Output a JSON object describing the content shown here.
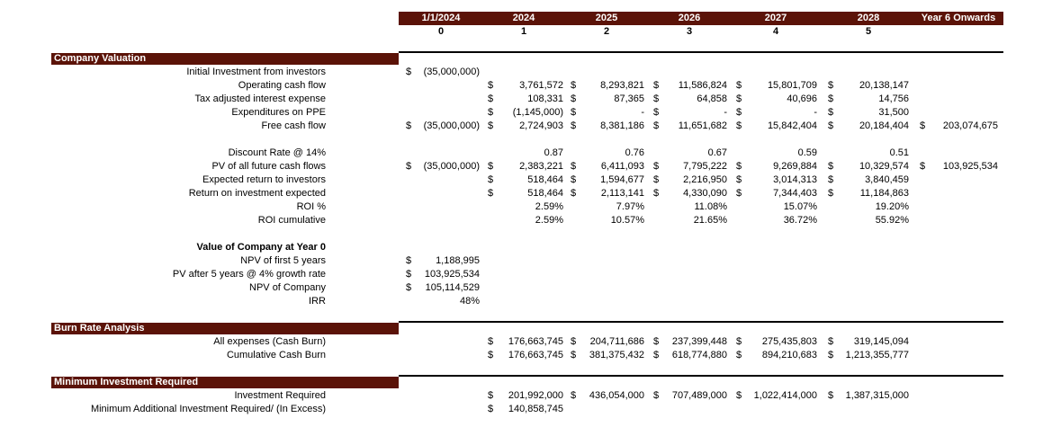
{
  "header": {
    "columns": [
      "1/1/2024",
      "2024",
      "2025",
      "2026",
      "2027",
      "2028",
      "Year 6 Onwards"
    ],
    "periods": [
      "0",
      "1",
      "2",
      "3",
      "4",
      "5"
    ]
  },
  "sections": [
    {
      "title": "Company Valuation",
      "rows": [
        {
          "label": "Initial Investment from investors",
          "cells": [
            [
              "$",
              "(35,000,000)"
            ],
            null,
            null,
            null,
            null,
            null,
            null
          ]
        },
        {
          "label": "Operating cash flow",
          "cells": [
            null,
            [
              "$",
              "3,761,572"
            ],
            [
              "$",
              "8,293,821"
            ],
            [
              "$",
              "11,586,824"
            ],
            [
              "$",
              "15,801,709"
            ],
            [
              "$",
              "20,138,147"
            ],
            null
          ]
        },
        {
          "label": "Tax adjusted interest expense",
          "cells": [
            null,
            [
              "$",
              "108,331"
            ],
            [
              "$",
              "87,365"
            ],
            [
              "$",
              "64,858"
            ],
            [
              "$",
              "40,696"
            ],
            [
              "$",
              "14,756"
            ],
            null
          ]
        },
        {
          "label": "Expenditures on PPE",
          "cells": [
            null,
            [
              "$",
              "(1,145,000)"
            ],
            [
              "$",
              "-"
            ],
            [
              "$",
              "-"
            ],
            [
              "$",
              "-"
            ],
            [
              "$",
              "31,500"
            ],
            null
          ]
        },
        {
          "label": "Free cash flow",
          "cells": [
            [
              "$",
              "(35,000,000)"
            ],
            [
              "$",
              "2,724,903"
            ],
            [
              "$",
              "8,381,186"
            ],
            [
              "$",
              "11,651,682"
            ],
            [
              "$",
              "15,842,404"
            ],
            [
              "$",
              "20,184,404"
            ],
            [
              "$",
              "203,074,675"
            ]
          ]
        },
        null,
        {
          "label": "Discount Rate @ 14%",
          "cells": [
            null,
            "0.87",
            "0.76",
            "0.67",
            "0.59",
            "0.51",
            null
          ]
        },
        {
          "label": "PV of all future cash flows",
          "cells": [
            [
              "$",
              "(35,000,000)"
            ],
            [
              "$",
              "2,383,221"
            ],
            [
              "$",
              "6,411,093"
            ],
            [
              "$",
              "7,795,222"
            ],
            [
              "$",
              "9,269,884"
            ],
            [
              "$",
              "10,329,574"
            ],
            [
              "$",
              "103,925,534"
            ]
          ]
        },
        {
          "label": "Expected return to investors",
          "cells": [
            null,
            [
              "$",
              "518,464"
            ],
            [
              "$",
              "1,594,677"
            ],
            [
              "$",
              "2,216,950"
            ],
            [
              "$",
              "3,014,313"
            ],
            [
              "$",
              "3,840,459"
            ],
            null
          ]
        },
        {
          "label": "Return on investment expected",
          "cells": [
            null,
            [
              "$",
              "518,464"
            ],
            [
              "$",
              "2,113,141"
            ],
            [
              "$",
              "4,330,090"
            ],
            [
              "$",
              "7,344,403"
            ],
            [
              "$",
              "11,184,863"
            ],
            null
          ]
        },
        {
          "label": "ROI %",
          "cells": [
            null,
            "2.59%",
            "7.97%",
            "11.08%",
            "15.07%",
            "19.20%",
            null
          ]
        },
        {
          "label": "ROI cumulative",
          "cells": [
            null,
            "2.59%",
            "10.57%",
            "21.65%",
            "36.72%",
            "55.92%",
            null
          ]
        },
        null,
        {
          "label": "Value of Company at Year 0",
          "bold": true,
          "cells": []
        },
        {
          "label": "NPV of first 5 years",
          "cells": [
            [
              "$",
              "1,188,995"
            ]
          ]
        },
        {
          "label": "PV after 5 years @ 4% growth rate",
          "cells": [
            [
              "$",
              "103,925,534"
            ]
          ]
        },
        {
          "label": "NPV of Company",
          "cells": [
            [
              "$",
              "105,114,529"
            ]
          ]
        },
        {
          "label": "IRR",
          "cells": [
            "48%"
          ]
        }
      ]
    },
    {
      "title": "Burn Rate Analysis",
      "rows": [
        {
          "label": "All expenses (Cash Burn)",
          "cells": [
            null,
            [
              "$",
              "176,663,745"
            ],
            [
              "$",
              "204,711,686"
            ],
            [
              "$",
              "237,399,448"
            ],
            [
              "$",
              "275,435,803"
            ],
            [
              "$",
              "319,145,094"
            ]
          ]
        },
        {
          "label": "Cumulative Cash Burn",
          "cells": [
            null,
            [
              "$",
              "176,663,745"
            ],
            [
              "$",
              "381,375,432"
            ],
            [
              "$",
              "618,774,880"
            ],
            [
              "$",
              "894,210,683"
            ],
            [
              "$",
              "1,213,355,777"
            ]
          ]
        }
      ]
    },
    {
      "title": "Minimum Investment Required",
      "rows": [
        {
          "label": "Investment Required",
          "cells": [
            null,
            [
              "$",
              "201,992,000"
            ],
            [
              "$",
              "436,054,000"
            ],
            [
              "$",
              "707,489,000"
            ],
            [
              "$",
              "1,022,414,000"
            ],
            [
              "$",
              "1,387,315,000"
            ]
          ]
        },
        {
          "label": "Minimum Additional Investment Required/ (In Excess)",
          "cells": [
            null,
            [
              "$",
              "140,858,745"
            ]
          ]
        }
      ]
    }
  ]
}
